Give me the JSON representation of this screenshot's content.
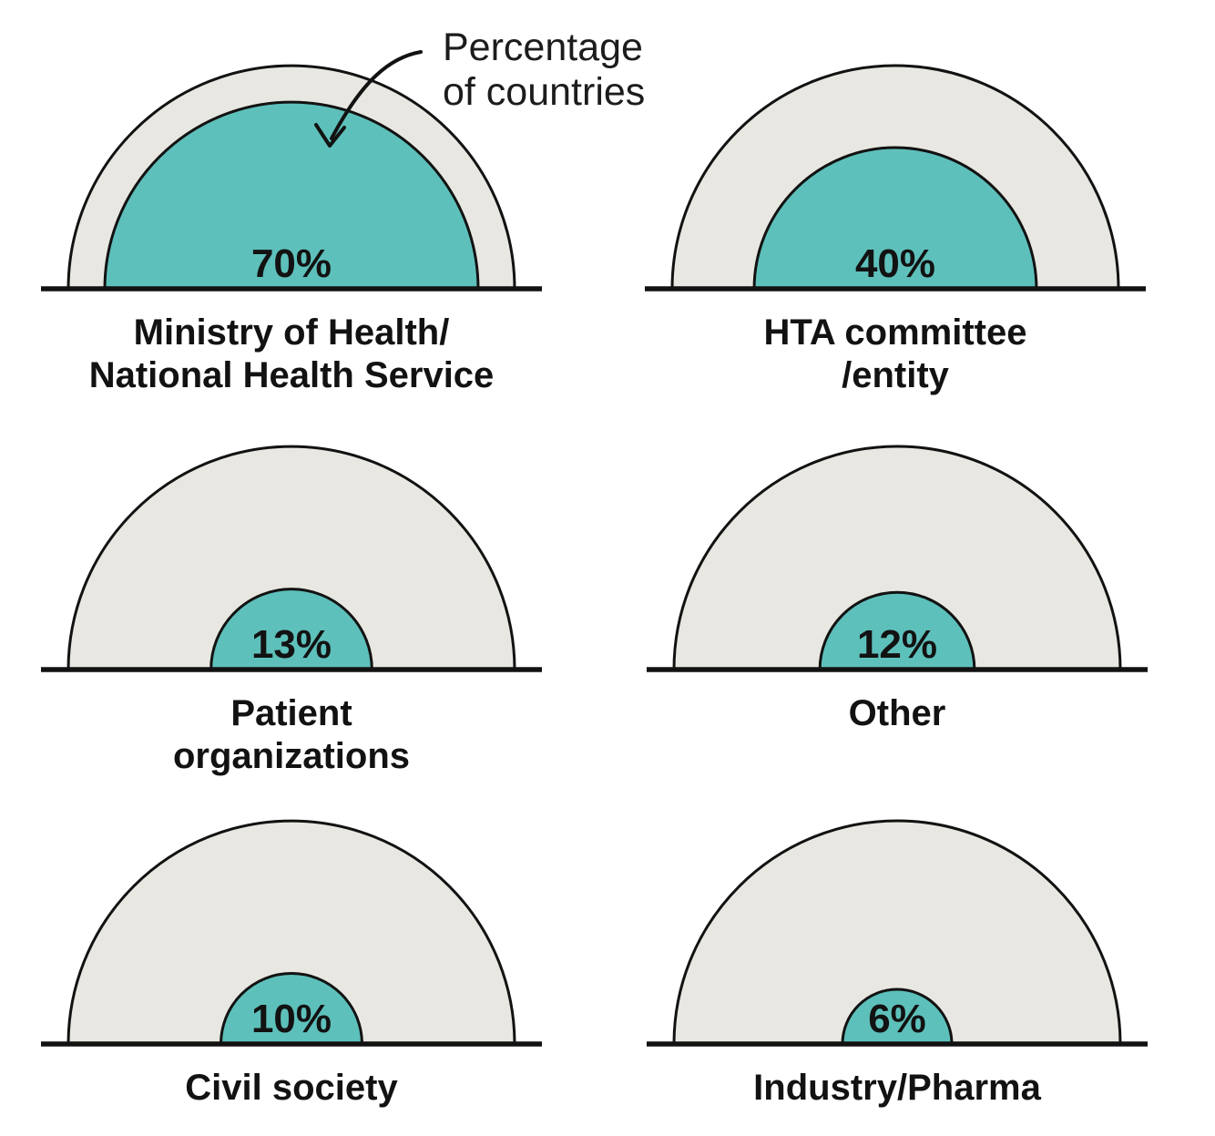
{
  "colors": {
    "inner_fill": "#5EC0BB",
    "outer_fill": "#E8E7E1",
    "outline": "#121212",
    "baseline": "#121212",
    "text": "#121212"
  },
  "chart_data": {
    "type": "semicircle-proportion",
    "title": "",
    "unit": "percentage of countries",
    "annotation_lines": [
      "Percentage",
      "of countries"
    ],
    "scale_note": "inner teal semicircle radius proportional to sqrt(percentage); outer gray semicircle = 100%",
    "legend_position": "none",
    "series": [
      {
        "label_lines": [
          "Ministry of Health/",
          "National Health Service"
        ],
        "value": 70,
        "value_label": "70%"
      },
      {
        "label_lines": [
          "HTA committee",
          "/entity"
        ],
        "value": 40,
        "value_label": "40%"
      },
      {
        "label_lines": [
          "Patient",
          "organizations"
        ],
        "value": 13,
        "value_label": "13%"
      },
      {
        "label_lines": [
          "Other"
        ],
        "value": 12,
        "value_label": "12%"
      },
      {
        "label_lines": [
          "Civil society"
        ],
        "value": 10,
        "value_label": "10%"
      },
      {
        "label_lines": [
          "Industry/Pharma"
        ],
        "value": 6,
        "value_label": "6%"
      }
    ]
  }
}
